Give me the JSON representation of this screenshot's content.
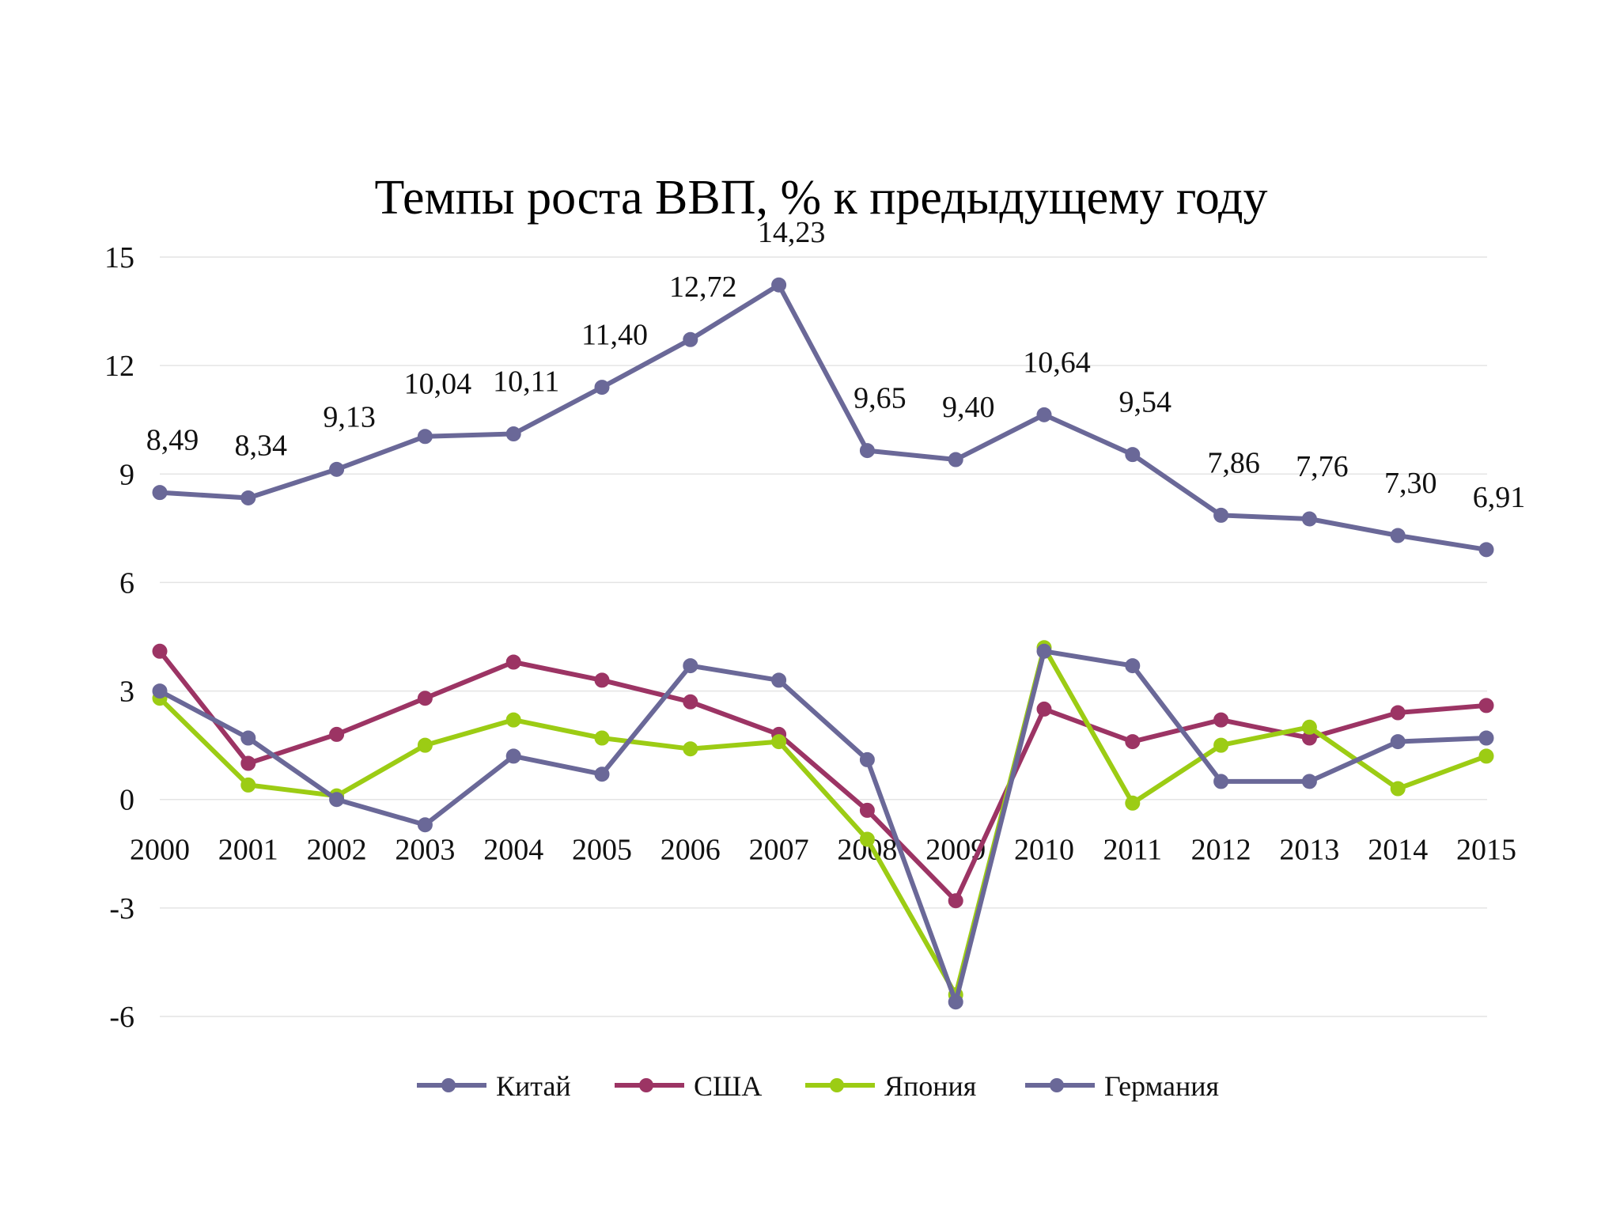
{
  "chart_data": {
    "type": "line",
    "title": "Темпы роста ВВП, % к предыдущему году",
    "xlabel": "",
    "ylabel": "",
    "x": [
      "2000",
      "2001",
      "2002",
      "2003",
      "2004",
      "2005",
      "2006",
      "2007",
      "2008",
      "2009",
      "2010",
      "2011",
      "2012",
      "2013",
      "2014",
      "2015"
    ],
    "ylim": [
      -6,
      15
    ],
    "yticks": [
      -6,
      -3,
      0,
      3,
      6,
      9,
      12,
      15
    ],
    "ytick_labels": [
      "-6",
      "-3",
      "0",
      "3",
      "6",
      "9",
      "12",
      "15"
    ],
    "grid": true,
    "legend_position": "bottom",
    "series": [
      {
        "name": "Китай",
        "color": "#6a6898",
        "values": [
          8.49,
          8.34,
          9.13,
          10.04,
          10.11,
          11.4,
          12.72,
          14.23,
          9.65,
          9.4,
          10.64,
          9.54,
          7.86,
          7.76,
          7.3,
          6.91
        ],
        "data_labels": [
          "8,49",
          "8,34",
          "9,13",
          "10,04",
          "10,11",
          "11,40",
          "12,72",
          "14,23",
          "9,65",
          "9,40",
          "10,64",
          "9,54",
          "7,86",
          "7,76",
          "7,30",
          "6,91"
        ]
      },
      {
        "name": "США",
        "color": "#9c3464",
        "values": [
          4.1,
          1.0,
          1.8,
          2.8,
          3.8,
          3.3,
          2.7,
          1.8,
          -0.3,
          -2.8,
          2.5,
          1.6,
          2.2,
          1.7,
          2.4,
          2.6
        ]
      },
      {
        "name": "Япония",
        "color": "#9ccc14",
        "values": [
          2.8,
          0.4,
          0.1,
          1.5,
          2.2,
          1.7,
          1.4,
          1.6,
          -1.1,
          -5.4,
          4.2,
          -0.1,
          1.5,
          2.0,
          0.3,
          1.2
        ]
      },
      {
        "name": "Германия",
        "color": "#6a6898",
        "values": [
          3.0,
          1.7,
          0.0,
          -0.7,
          1.2,
          0.7,
          3.7,
          3.3,
          1.1,
          -5.6,
          4.1,
          3.7,
          0.5,
          0.5,
          1.6,
          1.7
        ]
      }
    ]
  }
}
